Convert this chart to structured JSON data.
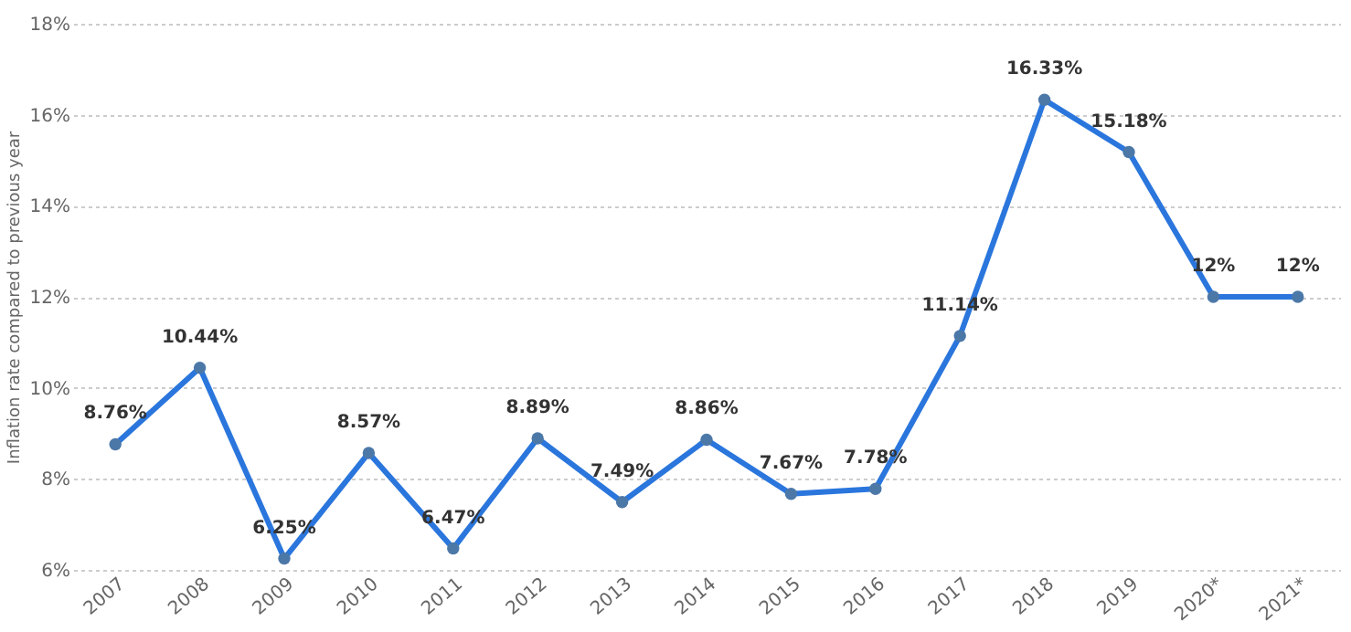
{
  "chart_data": {
    "type": "line",
    "ylabel": "Inflation rate compared to previous year",
    "categories": [
      "2007",
      "2008",
      "2009",
      "2010",
      "2011",
      "2012",
      "2013",
      "2014",
      "2015",
      "2016",
      "2017",
      "2018",
      "2019",
      "2020*",
      "2021*"
    ],
    "series": [
      {
        "color": "#2a76dd",
        "values": [
          8.76,
          10.44,
          6.25,
          8.57,
          6.47,
          8.89,
          7.49,
          8.86,
          7.67,
          7.78,
          11.14,
          16.33,
          15.18,
          12,
          12
        ],
        "value_labels": [
          "8.76%",
          "10.44%",
          "6.25%",
          "8.57%",
          "6.47%",
          "8.89%",
          "7.49%",
          "8.86%",
          "7.67%",
          "7.78%",
          "11.14%",
          "16.33%",
          "15.18%",
          "12%",
          "12%"
        ]
      }
    ],
    "ylim": [
      6,
      18
    ],
    "yticks": [
      {
        "value": 6,
        "label": "6%"
      },
      {
        "value": 8,
        "label": "8%"
      },
      {
        "value": 10,
        "label": "10%"
      },
      {
        "value": 12,
        "label": "12%"
      },
      {
        "value": 14,
        "label": "14%"
      },
      {
        "value": 16,
        "label": "16%"
      },
      {
        "value": 18,
        "label": "18%"
      }
    ],
    "grid": "y",
    "marker": "circle",
    "line_style": "solid"
  }
}
